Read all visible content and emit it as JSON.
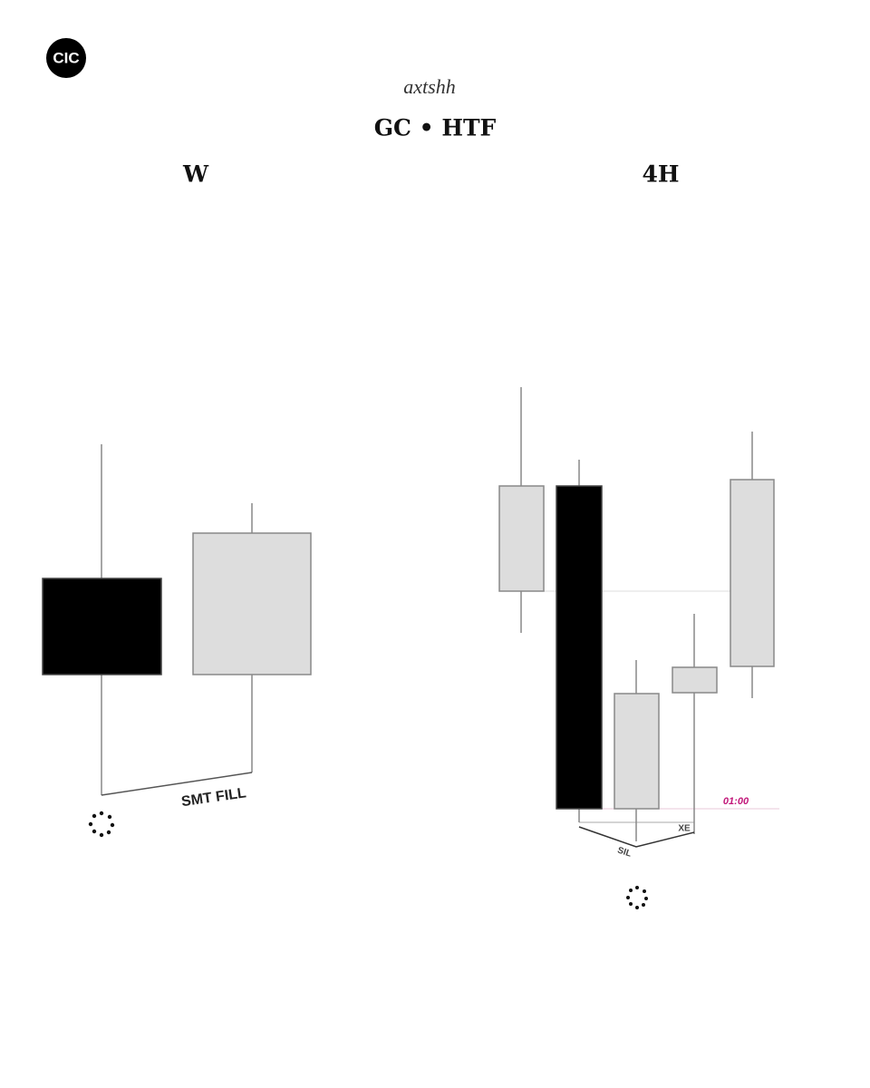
{
  "logo": "CIC",
  "header": {
    "signature": "axtshh",
    "title": "GC • HTF"
  },
  "panels": [
    {
      "label": "W",
      "annotations": [
        "SMT FILL"
      ]
    },
    {
      "label": "4H",
      "annotations": [
        "01:00",
        "XE",
        "SIL"
      ]
    }
  ]
}
